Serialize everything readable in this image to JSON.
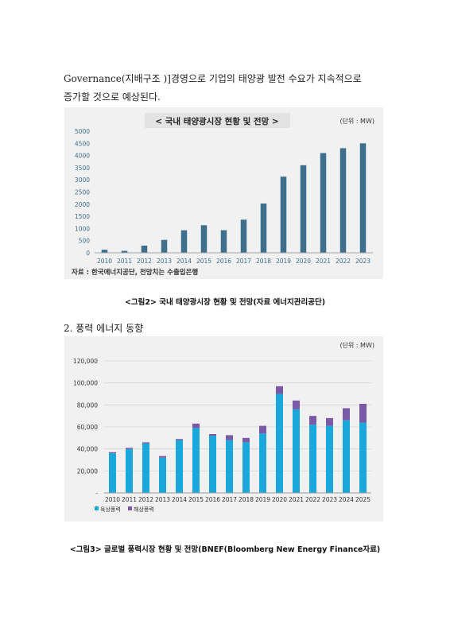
{
  "paragraph": {
    "line1": "Governance(지배구조 )]경영으로 기업의 태양광 발전 수요가 지속적으로",
    "line2": "증가할 것으로 예상된다."
  },
  "figure1": {
    "caption": "<그림2> 국내 태양광시장 현황 및 전망(자료 에너지관리공단)",
    "source_note": "자료 : 한국에너지공단, 전망치는 수출입은행"
  },
  "section2": {
    "heading": "2. 풍력 에너지  동향"
  },
  "figure2": {
    "caption": "<그림3> 글로벌 풍력시장 현황 및 전망(BNEF(Bloomberg New Energy Finance자료)"
  },
  "colors": {
    "solar_bar": "#3f6f8c",
    "onshore": "#1aa7d9",
    "offshore": "#7a5aa6",
    "title_box": "#e3e3e3"
  },
  "chart_data": [
    {
      "type": "bar",
      "title": "< 국내 태양광시장 현황 및 전망 >",
      "unit_label": "(단위 : MW)",
      "categories": [
        "2010",
        "2011",
        "2012",
        "2013",
        "2014",
        "2015",
        "2016",
        "2017",
        "2018",
        "2019",
        "2020",
        "2021",
        "2022",
        "2023"
      ],
      "values": [
        127,
        80,
        295,
        531,
        926,
        1134,
        929,
        1362,
        2027,
        3130,
        3600,
        4100,
        4300,
        4500
      ],
      "yticks": [
        "5000",
        "4500",
        "4000",
        "3500",
        "3000",
        "2500",
        "2000",
        "1500",
        "1000",
        "500",
        "0"
      ],
      "ylim": [
        0,
        5000
      ],
      "grid": false
    },
    {
      "type": "bar",
      "stacked": true,
      "unit_label": "(단위 : MW)",
      "categories": [
        "2010",
        "2011",
        "2012",
        "2013",
        "2014",
        "2015",
        "2016",
        "2017",
        "2018",
        "2019",
        "2020",
        "2021",
        "2022",
        "2023",
        "2024",
        "2025"
      ],
      "yticks": [
        "120,000",
        "100,000",
        "80,000",
        "60,000",
        "40,000",
        "20,000",
        "-"
      ],
      "ylim": [
        0,
        120000
      ],
      "grid": true,
      "legend_position": "bottom-left",
      "series": [
        {
          "name": "육상풍력",
          "values": [
            36000,
            40000,
            45000,
            32000,
            48000,
            59000,
            52000,
            48000,
            46000,
            54000,
            90000,
            76000,
            62000,
            61000,
            66000,
            64000
          ]
        },
        {
          "name": "해상풍력",
          "values": [
            1000,
            1000,
            1000,
            1500,
            1000,
            4000,
            1500,
            4500,
            4000,
            7000,
            7000,
            8000,
            8000,
            7000,
            11000,
            17000
          ]
        }
      ]
    }
  ]
}
